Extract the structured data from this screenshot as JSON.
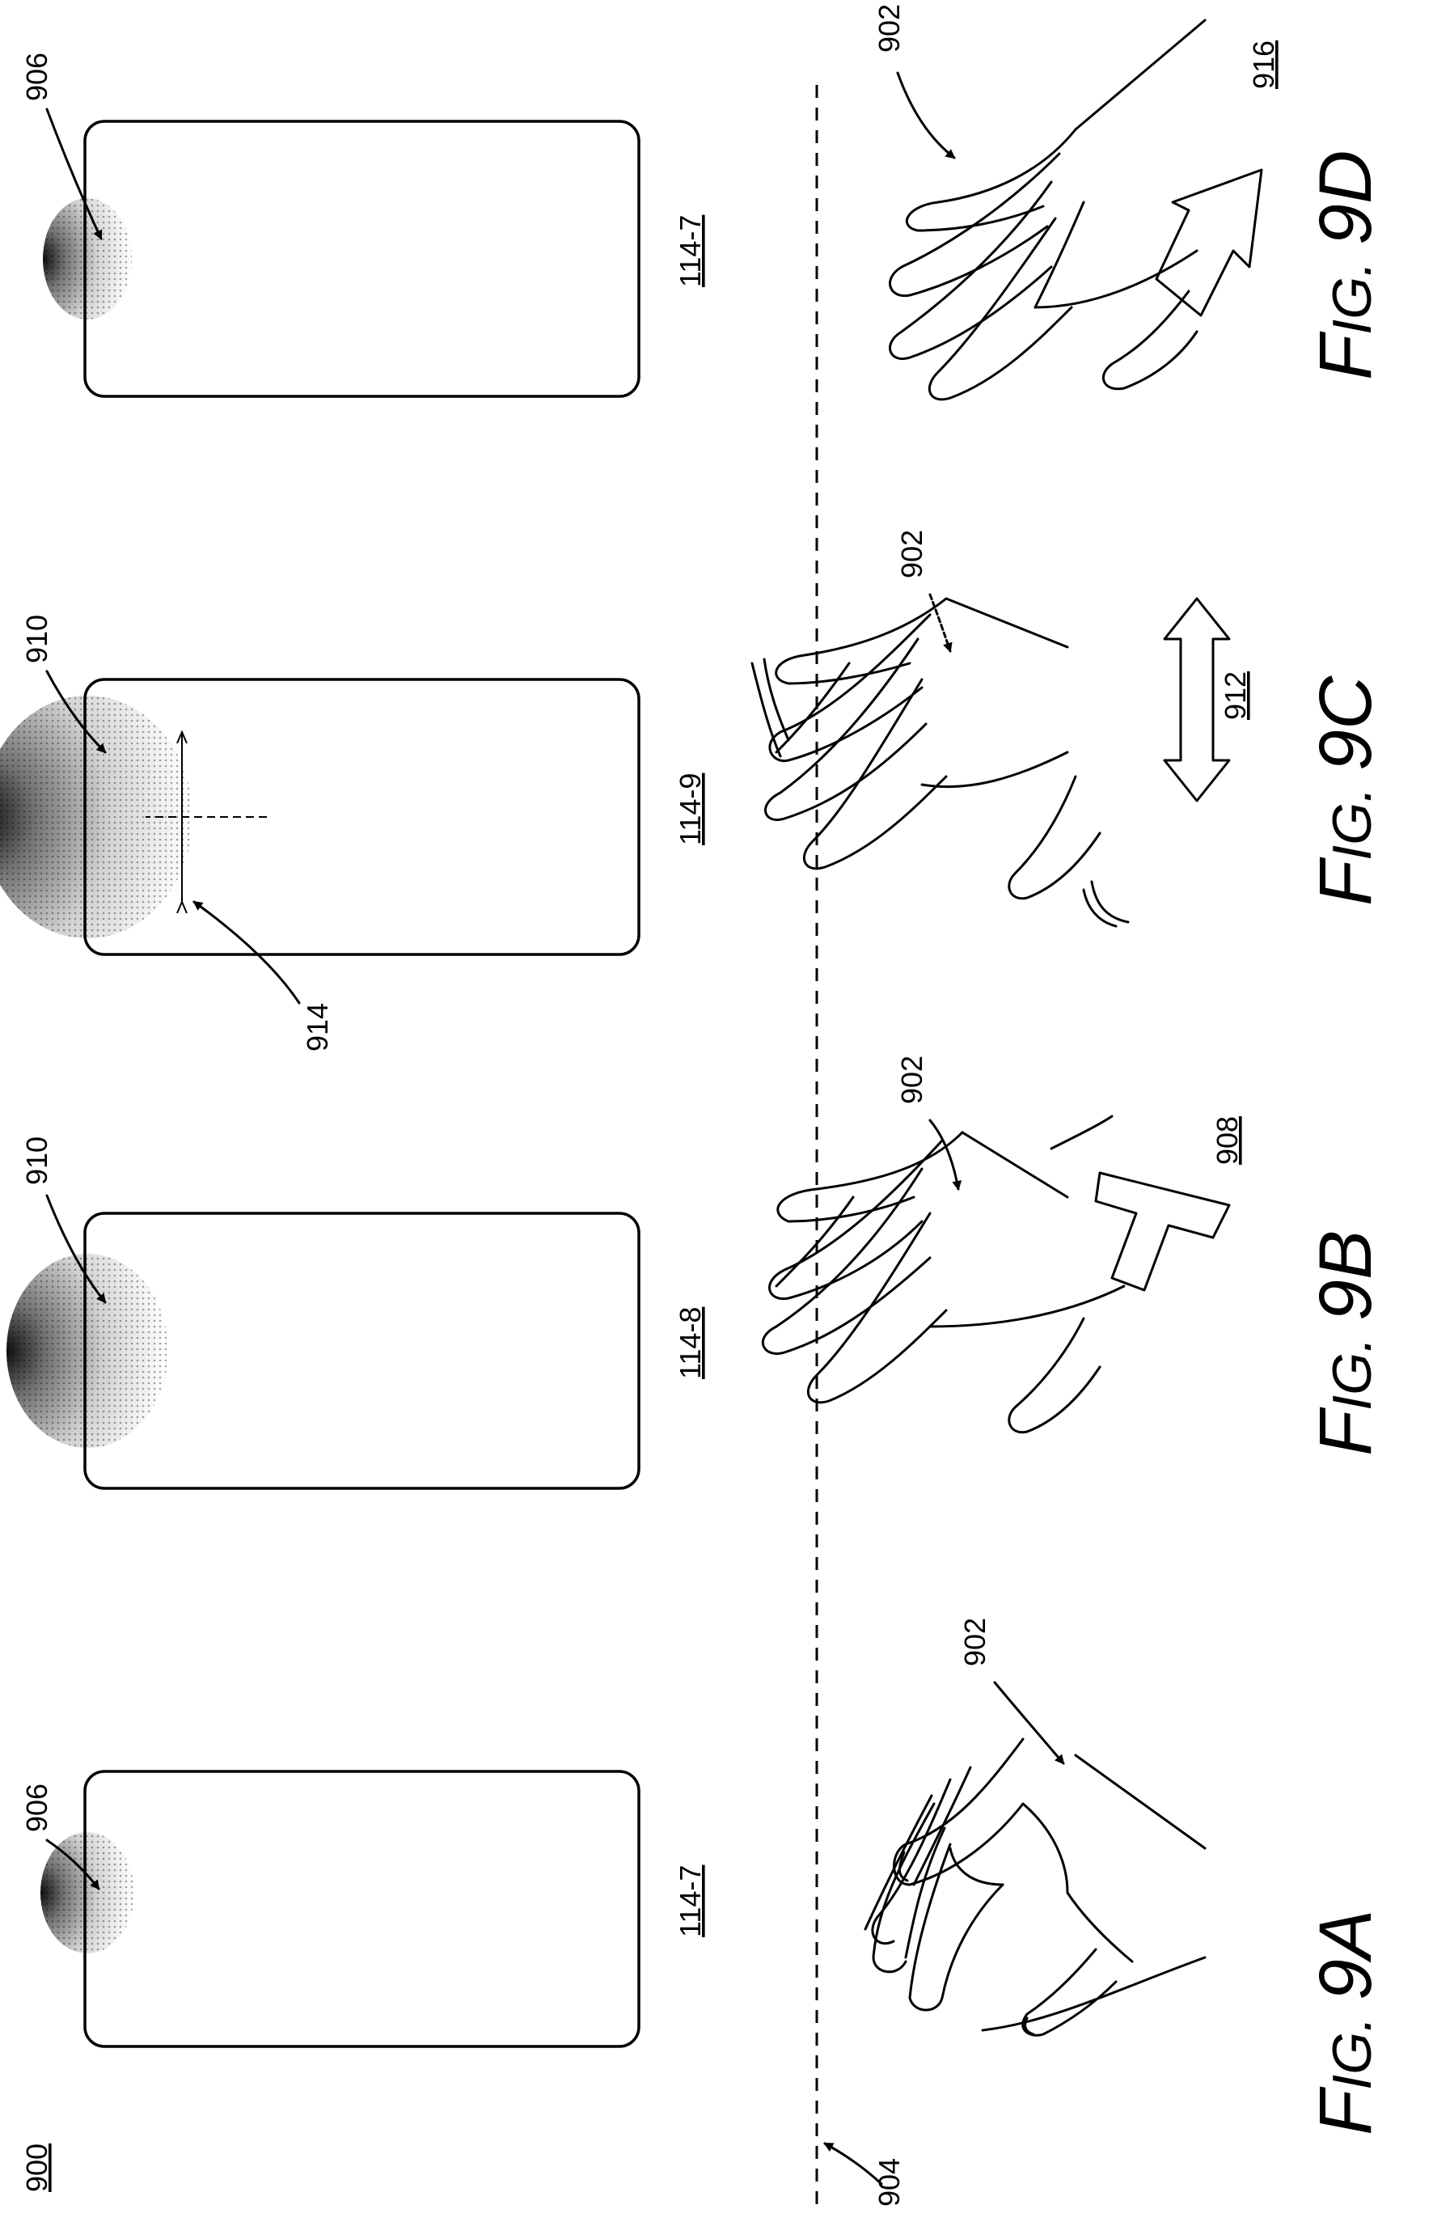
{
  "figure_number": "900",
  "panels": [
    {
      "id": "9A",
      "caption_prefix": "F",
      "caption_small": "IG.",
      "caption_num": "9A",
      "device_label": "114-7",
      "glow_label": "906",
      "hand_label": "902",
      "plane_label": "904"
    },
    {
      "id": "9B",
      "caption_prefix": "F",
      "caption_small": "IG.",
      "caption_num": "9B",
      "device_label": "114-8",
      "glow_label": "910",
      "hand_label": "902",
      "arrow_label": "908"
    },
    {
      "id": "9C",
      "caption_prefix": "F",
      "caption_small": "IG.",
      "caption_num": "9C",
      "device_label": "114-9",
      "glow_label": "910",
      "hand_label": "902",
      "arrow_label": "912",
      "indicator_label": "914"
    },
    {
      "id": "9D",
      "caption_prefix": "F",
      "caption_small": "IG.",
      "caption_num": "9D",
      "device_label": "114-7",
      "glow_label": "906",
      "hand_label": "902",
      "arrow_label": "916"
    }
  ]
}
